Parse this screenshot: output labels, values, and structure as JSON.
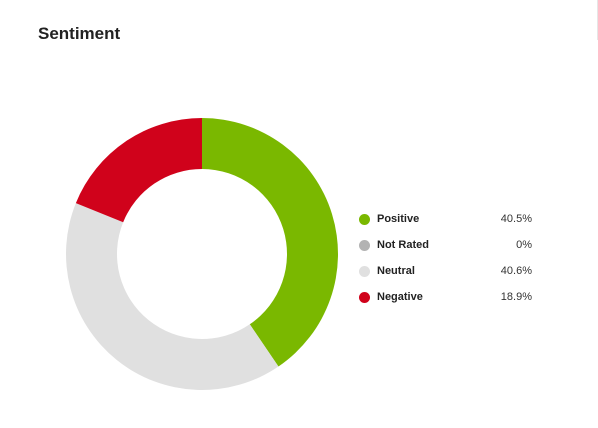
{
  "title": "Sentiment",
  "chart_data": {
    "type": "pie",
    "subtype": "donut",
    "title": "Sentiment",
    "start_angle": "12 o'clock",
    "direction": "clockwise",
    "series": [
      {
        "name": "Positive",
        "value": 40.5,
        "label": "40.5%",
        "color": "#7ab800"
      },
      {
        "name": "Not Rated",
        "value": 0,
        "label": "0%",
        "color": "#b3b3b3"
      },
      {
        "name": "Neutral",
        "value": 40.6,
        "label": "40.6%",
        "color": "#e0e0e0"
      },
      {
        "name": "Negative",
        "value": 18.9,
        "label": "18.9%",
        "color": "#d0021b"
      }
    ],
    "legend_position": "right"
  }
}
